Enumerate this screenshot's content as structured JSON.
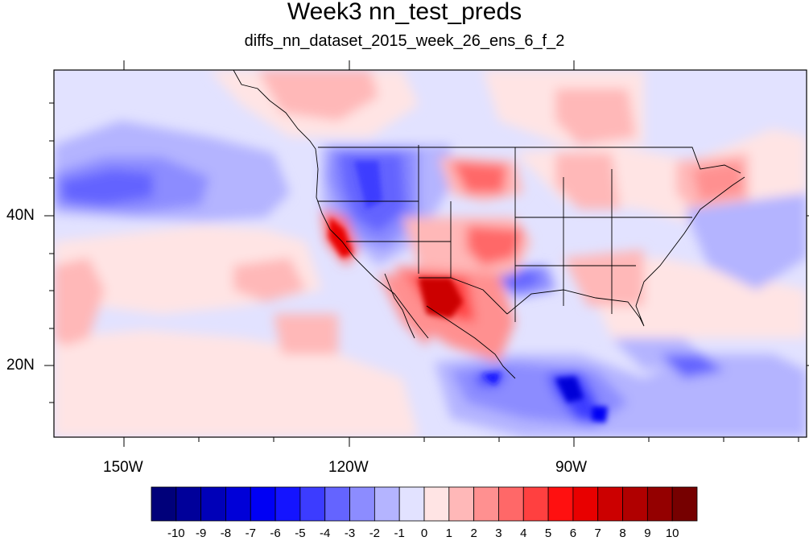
{
  "title": "Week3 nn_test_preds",
  "subtitle": "diffs_nn_dataset_2015_week_26_ens_6_f_2",
  "lat_labels": [
    "40N",
    "20N"
  ],
  "lon_labels": [
    "150W",
    "120W",
    "90W"
  ],
  "colorbar": {
    "labels": [
      "-10",
      "-9",
      "-8",
      "-7",
      "-6",
      "-5",
      "-4",
      "-3",
      "-2",
      "-1",
      "0",
      "1",
      "2",
      "3",
      "4",
      "5",
      "6",
      "7",
      "8",
      "9",
      "10"
    ],
    "colors": [
      "#00007a",
      "#00009a",
      "#0000b8",
      "#0000d8",
      "#0000f4",
      "#1414ff",
      "#3c3cff",
      "#6464ff",
      "#8c8cff",
      "#b4b4ff",
      "#e2e2ff",
      "#ffe4e4",
      "#ffb8b8",
      "#ff9090",
      "#ff6868",
      "#ff4040",
      "#ff1010",
      "#e80000",
      "#cc0000",
      "#b00000",
      "#940000",
      "#760000"
    ]
  }
}
